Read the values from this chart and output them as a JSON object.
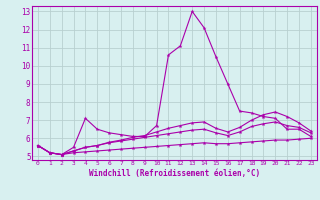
{
  "x": [
    0,
    1,
    2,
    3,
    4,
    5,
    6,
    7,
    8,
    9,
    10,
    11,
    12,
    13,
    14,
    15,
    16,
    17,
    18,
    19,
    20,
    21,
    22,
    23
  ],
  "line1": [
    5.6,
    5.2,
    5.1,
    5.5,
    7.1,
    6.5,
    6.3,
    6.2,
    6.1,
    6.1,
    6.7,
    10.6,
    11.1,
    13.0,
    12.1,
    10.5,
    9.0,
    7.5,
    7.4,
    7.2,
    7.1,
    6.5,
    6.5,
    6.1
  ],
  "line2": [
    5.6,
    5.2,
    5.1,
    5.2,
    5.25,
    5.3,
    5.35,
    5.4,
    5.45,
    5.5,
    5.55,
    5.6,
    5.65,
    5.7,
    5.75,
    5.7,
    5.7,
    5.75,
    5.8,
    5.85,
    5.9,
    5.9,
    5.95,
    6.0
  ],
  "line3": [
    5.6,
    5.2,
    5.1,
    5.3,
    5.5,
    5.6,
    5.75,
    5.85,
    5.95,
    6.05,
    6.15,
    6.25,
    6.35,
    6.45,
    6.5,
    6.3,
    6.15,
    6.35,
    6.65,
    6.8,
    6.9,
    6.7,
    6.6,
    6.3
  ],
  "line4": [
    5.6,
    5.2,
    5.1,
    5.3,
    5.5,
    5.6,
    5.78,
    5.9,
    6.05,
    6.15,
    6.35,
    6.55,
    6.7,
    6.85,
    6.9,
    6.55,
    6.35,
    6.6,
    7.0,
    7.3,
    7.45,
    7.2,
    6.85,
    6.4
  ],
  "line_color": "#aa00aa",
  "bg_color": "#d8f0f0",
  "grid_color": "#b8d0d0",
  "xlabel": "Windchill (Refroidissement éolien,°C)",
  "xlim": [
    -0.5,
    23.5
  ],
  "ylim": [
    4.8,
    13.3
  ],
  "yticks": [
    5,
    6,
    7,
    8,
    9,
    10,
    11,
    12,
    13
  ],
  "xticks": [
    0,
    1,
    2,
    3,
    4,
    5,
    6,
    7,
    8,
    9,
    10,
    11,
    12,
    13,
    14,
    15,
    16,
    17,
    18,
    19,
    20,
    21,
    22,
    23
  ]
}
